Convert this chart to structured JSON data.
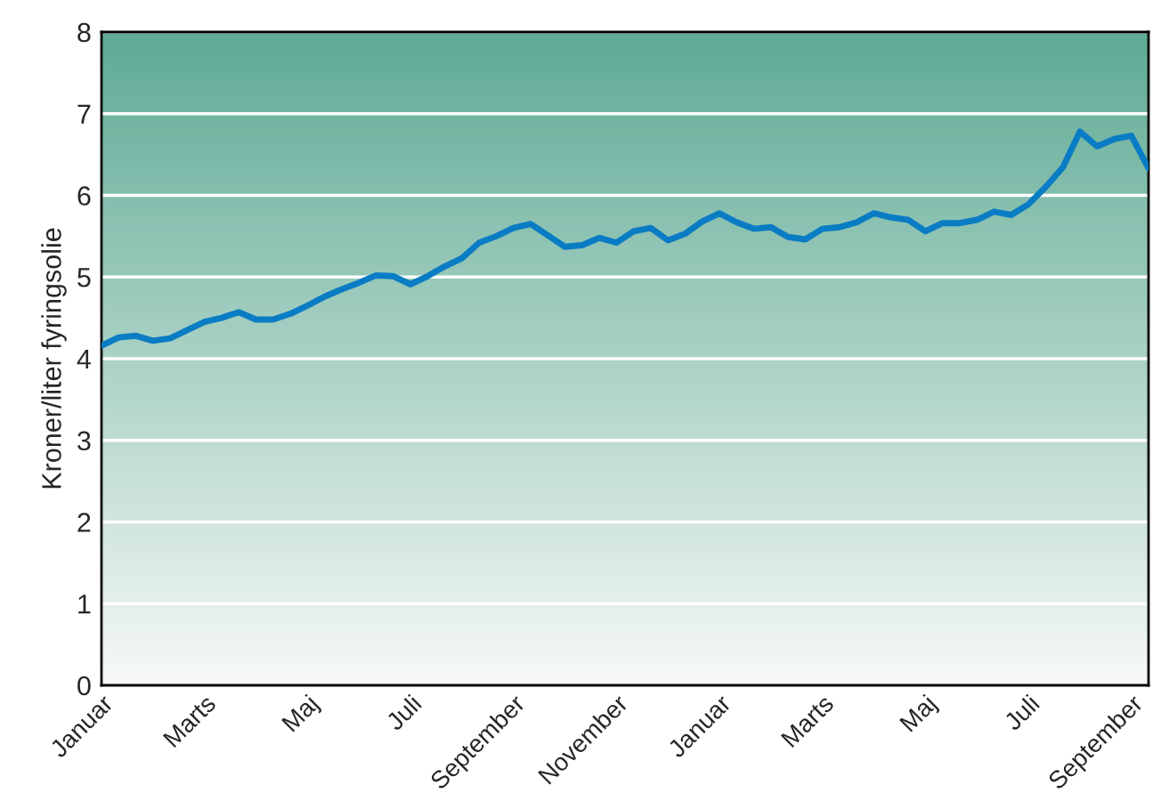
{
  "chart_data": {
    "type": "line",
    "ylabel": "Kroner/liter fyringsolie",
    "categories": [
      "Januar",
      null,
      null,
      null,
      null,
      null,
      "Marts",
      null,
      null,
      null,
      null,
      null,
      "Maj",
      null,
      null,
      null,
      null,
      null,
      "Juli",
      null,
      null,
      null,
      null,
      null,
      "September",
      null,
      null,
      null,
      null,
      null,
      "November",
      null,
      null,
      null,
      null,
      null,
      "Januar",
      null,
      null,
      null,
      null,
      null,
      "Marts",
      null,
      null,
      null,
      null,
      null,
      "Maj",
      null,
      null,
      null,
      null,
      null,
      "Juli",
      null,
      null,
      null,
      null,
      null,
      "September",
      null
    ],
    "series": [
      {
        "color": "#0a7cc4",
        "values": [
          4.16,
          4.26,
          4.28,
          4.22,
          4.25,
          4.35,
          4.45,
          4.5,
          4.57,
          4.48,
          4.48,
          4.55,
          4.65,
          4.76,
          4.85,
          4.93,
          5.02,
          5.01,
          4.91,
          5.01,
          5.13,
          5.23,
          5.42,
          5.5,
          5.6,
          5.65,
          5.51,
          5.37,
          5.39,
          5.48,
          5.42,
          5.56,
          5.6,
          5.45,
          5.53,
          5.68,
          5.78,
          5.67,
          5.59,
          5.61,
          5.49,
          5.46,
          5.59,
          5.61,
          5.67,
          5.78,
          5.73,
          5.7,
          5.56,
          5.66,
          5.66,
          5.7,
          5.8,
          5.76,
          5.89,
          6.1,
          6.34,
          6.78,
          6.6,
          6.69,
          6.73,
          6.33
        ]
      }
    ],
    "ylim": [
      0,
      8
    ],
    "yticks": [
      0,
      1,
      2,
      3,
      4,
      5,
      6,
      7,
      8
    ],
    "grid": "y",
    "line_style": "solid",
    "marker": "none"
  }
}
